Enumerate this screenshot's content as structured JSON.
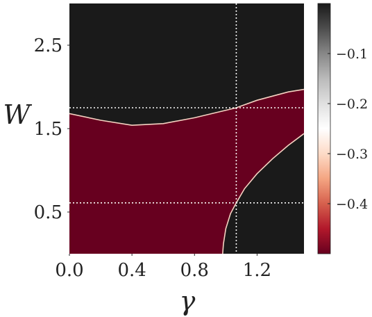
{
  "chart_data": {
    "type": "region",
    "xlabel": "γ",
    "ylabel": "W",
    "xlim": [
      0,
      1.5
    ],
    "ylim": [
      0,
      3
    ],
    "xticks": [
      {
        "value": 0,
        "label": "0.0"
      },
      0.4,
      0.8,
      1.2
    ],
    "yticks": [
      0.5,
      1.5,
      2.5
    ],
    "regions": [
      {
        "value": 0
      },
      {
        "value": -0.5
      }
    ],
    "upper_boundary": {
      "x": [
        0,
        0.2,
        0.4,
        0.6,
        0.8,
        1.0,
        1.067,
        1.2,
        1.4,
        1.5
      ],
      "y": [
        1.68,
        1.6,
        1.54,
        1.56,
        1.63,
        1.72,
        1.75,
        1.84,
        1.94,
        1.97
      ]
    },
    "lower_boundary": {
      "x": [
        0.98,
        0.985,
        1.0,
        1.03,
        1.067,
        1.12,
        1.2,
        1.3,
        1.4,
        1.5
      ],
      "y": [
        0,
        0.12,
        0.3,
        0.48,
        0.61,
        0.78,
        0.96,
        1.14,
        1.3,
        1.44
      ]
    },
    "vlines": [
      1.067
    ],
    "hlines": [
      1.75,
      0.61
    ],
    "colorbar": {
      "clim": [
        -0.5,
        0
      ],
      "ticks": [
        {
          "value": -0.1,
          "label": "−0.1"
        },
        {
          "value": -0.2,
          "label": "−0.2"
        },
        {
          "value": -0.3,
          "label": "−0.3"
        },
        {
          "value": -0.4,
          "label": "−0.4"
        }
      ],
      "colors": [
        "#67001f",
        "#b2182b",
        "#d6604d",
        "#f4a582",
        "#fddbc7",
        "#ffffff",
        "#e0e0e0",
        "#bababa",
        "#878787",
        "#4d4d4d",
        "#1a1a1a"
      ]
    }
  }
}
